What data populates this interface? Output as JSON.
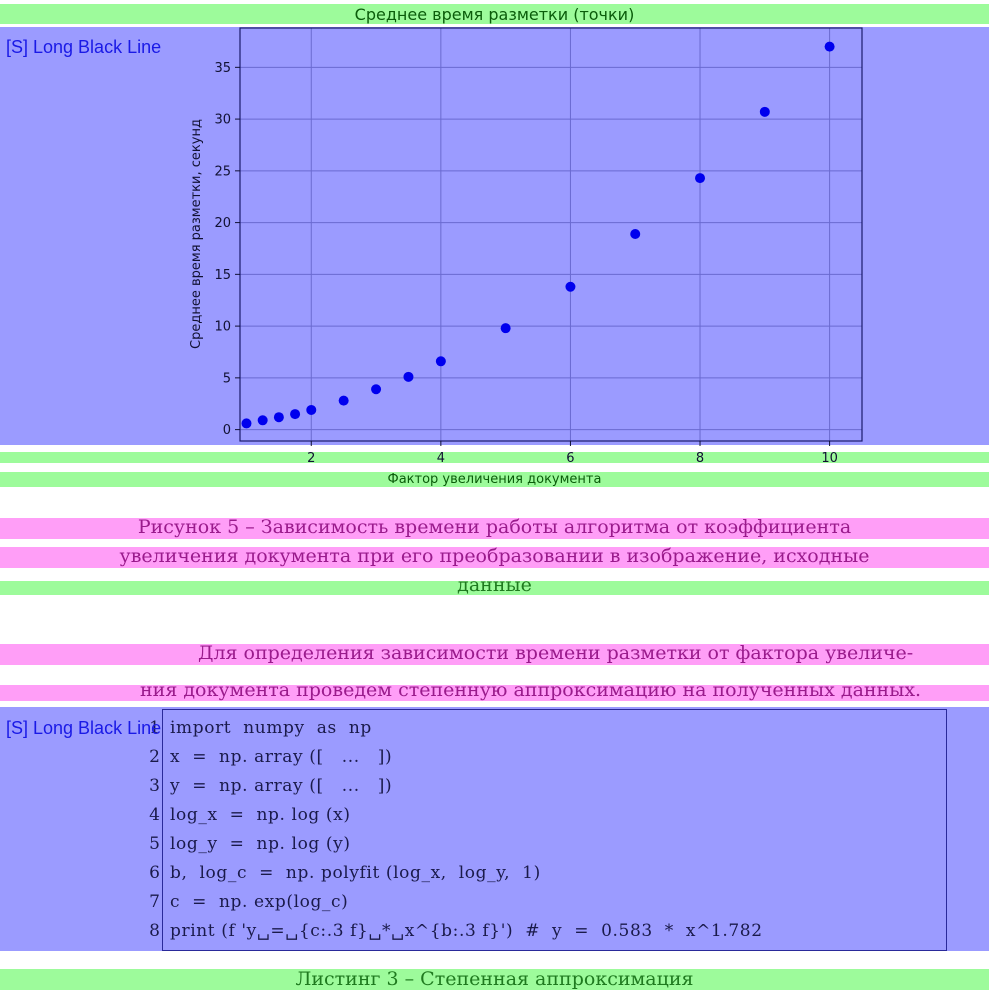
{
  "tags": {
    "figure_tag": "[S] Long Black Line",
    "code_tag": "[S] Long Black Line"
  },
  "chart_data": {
    "type": "scatter",
    "title": "Среднее время разметки (точки)",
    "xlabel": "Фактор увеличения документа",
    "ylabel": "Среднее время разметки, секунд",
    "xlim": [
      0.9,
      10.5
    ],
    "ylim": [
      -1.1,
      38.8
    ],
    "xticks": [
      2,
      4,
      6,
      8,
      10
    ],
    "yticks": [
      0,
      5,
      10,
      15,
      20,
      25,
      30,
      35
    ],
    "grid": true,
    "color": "#0000ee",
    "x": [
      1,
      1.25,
      1.5,
      1.75,
      2,
      2.5,
      3,
      3.5,
      4,
      5,
      6,
      7,
      8,
      9,
      10
    ],
    "y": [
      0.6,
      0.9,
      1.2,
      1.5,
      1.9,
      2.8,
      3.9,
      5.1,
      6.6,
      9.8,
      13.8,
      18.9,
      24.3,
      30.7,
      37.0
    ]
  },
  "figure_caption": {
    "line1": "Рисунок 5 – Зависимость времени работы алгоритма от коэффициента",
    "line2": "увеличения документа при его преобразовании в изображение, исходные",
    "line3": "данные"
  },
  "paragraph": {
    "line1": "Для определения зависимости времени разметки от фактора увеличе-",
    "line2": "ния документа проведем степенную аппроксимацию на полученных данных."
  },
  "code": {
    "lines": [
      {
        "num": "1",
        "text": "import  numpy  as  np"
      },
      {
        "num": "2",
        "text": "x  =  np. array ([   ...   ])"
      },
      {
        "num": "3",
        "text": "y  =  np. array ([   ...   ])"
      },
      {
        "num": "4",
        "text": "log_x  =  np. log (x)"
      },
      {
        "num": "5",
        "text": "log_y  =  np. log (y)"
      },
      {
        "num": "6",
        "text": "b,  log_c  =  np. polyfit (log_x,  log_y,  1)"
      },
      {
        "num": "7",
        "text": "c  =  np. exp(log_c)"
      },
      {
        "num": "8",
        "text": "print (f 'y␣=␣{c:.3 f}␣*␣x^{b:.3 f}')  #  y  =  0.583  *  x^1.782"
      }
    ]
  },
  "listing_caption": "Листинг 3 – Степенная аппроксимация"
}
